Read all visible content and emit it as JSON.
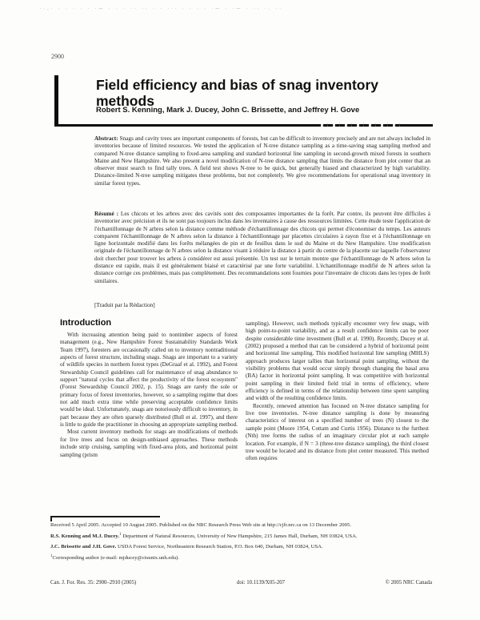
{
  "scan": {
    "artifact": "··,· · ·  ·   · ·    ·—    · ·   · ··  ·· · ·  ··· ·   · ·   · ·—  ·  ·—   · ·· ·, ··",
    "page_number": "2900"
  },
  "article": {
    "title": "Field efficiency and bias of snag inventory methods",
    "authors": "Robert S. Kenning, Mark J. Ducey, John C. Brissette, and Jeffrey H. Gove",
    "abstract_label": "Abstract:",
    "abstract_text": " Snags and cavity trees are important components of forests, but can be difficult to inventory precisely and are not always included in inventories because of limited resources. We tested the application of N-tree distance sampling as a time-saving snag sampling method and compared N-tree distance sampling to fixed-area sampling and standard horizontal line sampling in second-growth mixed forests in southern Maine and New Hampshire. We also present a novel modification of N-tree distance sampling that limits the distance from plot center that an observer must search to find tally trees. A field test shows N-tree to be quick, but generally biased and characterized by high variability. Distance-limited N-tree sampling mitigates these problems, but not completely. We give recommendations for operational snag inventory in similar forest types.",
    "resume_label": "Résumé :",
    "resume_text": " Les chicots et les arbres avec des cavités sont des composantes importantes de la forêt. Par contre, ils peuvent être difficiles à inventorier avec précision et ils ne sont pas toujours inclus dans les inventaires à cause des ressources limitées. Cette étude teste l'application de l'échantillonnage de N arbres selon la distance comme méthode d'échantillonnage des chicots qui permet d'économiser du temps. Les auteurs comparent l'échantillonnage de N arbres selon la distance à l'échantillonnage par placettes circulaires à rayon fixe et à l'échantillonnage en ligne horizontale modifié dans les forêts mélangées de pin et de feuillus dans le sud du Maine et du New Hampshire. Une modification originale de l'échantillonnage de N arbres selon la distance visant à réduire la distance à partir du centre de la placette sur laquelle l'observateur doit chercher pour trouver les arbres à considérer est aussi présentée. Un test sur le terrain montre que l'échantillonnage de N arbres selon la distance est rapide, mais il est généralement biaisé et caractérisé par une forte variabilité. L'échantillonnage modifié de N arbres selon la distance corrige ces problèmes, mais pas complètement. Des recommandations sont fournies pour l'inventaire de chicots dans les types de forêt similaires.",
    "translation_note": "[Traduit par la Rédaction]"
  },
  "introduction": {
    "heading": "Introduction",
    "col1_p1": "With increasing attention being paid to nontimber aspects of forest management (e.g., New Hampshire Forest Sustainability Standards Work Team 1997), foresters are occasionally called on to inventory nontraditional aspects of forest structure, including snags. Snags are important to a variety of wildlife species in northern forest types (DeGraaf et al. 1992), and Forest Stewardship Council guidelines call for maintenance of snag abundance to support \"natural cycles that affect the productivity of the forest ecosystem\" (Forest Stewardship Council 2002, p. 15). Snags are rarely the sole or primary focus of forest inventories, however, so a sampling regime that does not add much extra time while preserving acceptable confidence limits would be ideal. Unfortunately, snags are notoriously difficult to inventory, in part because they are often sparsely distributed (Bull et al. 1997), and there is little to guide the practitioner in choosing an appropriate sampling method.",
    "col1_p2": "Most current inventory methods for snags are modifications of methods for live trees and focus on design-unbiased approaches. These methods include strip cruising, sampling with fixed-area plots, and horizontal point sampling (prism",
    "col2_p1": "sampling). However, such methods typically encounter very few snags, with high point-to-point variability, and as a result confidence limits can be poor despite considerable time investment (Bull et al. 1990). Recently, Ducey et al. (2002) proposed a method that can be considered a hybrid of horizontal point and horizontal line sampling. This modified horizontal line sampling (MHLS) approach produces larger tallies than horizontal point sampling, without the visibility problems that would occur simply through changing the basal area (BA) factor in horizontal point sampling. It was competitive with horizontal point sampling in their limited field trial in terms of efficiency, where efficiency is defined in terms of the relationship between time spent sampling and width of the resulting confidence limits.",
    "col2_p2": "Recently, renewed attention has focused on N-tree distance sampling for live tree inventories. N-tree distance sampling is done by measuring characteristics of interest on a specified number of trees (N) closest to the sample point (Moore 1954, Cottam and Curtis 1956). Distance to the furthest (Nth) tree forms the radius of an imaginary circular plot at each sample location. For example, if N = 3 (three-tree distance sampling), the third closest tree would be located and its distance from plot center measured. This method often requires"
  },
  "footnotes": {
    "received": "Received 5 April 2005. Accepted 10 August 2005. Published on the NRC Research Press Web site at http://cjfr.nrc.ca on 13 December 2005.",
    "affil1_names": "R.S. Kenning and M.J. Ducey.",
    "affil1_text": " Department of Natural Resources, University of New Hampshire, 215 James Hall, Durham, NH 03824, USA.",
    "affil2_names": "J.C. Brissette and J.H. Gove.",
    "affil2_text": " USDA Forest Service, Northeastern Research Station, P.O. Box 640, Durham, NH 03824, USA.",
    "sup": "1",
    "corresponding": "Corresponding author (e-mail: mjducey@cisunix.unh.edu)."
  },
  "footer": {
    "citation": "Can. J. For. Res. 35: 2900–2910 (2005)",
    "doi": "doi: 10.1139/X05-207",
    "copyright": "© 2005 NRC Canada"
  }
}
